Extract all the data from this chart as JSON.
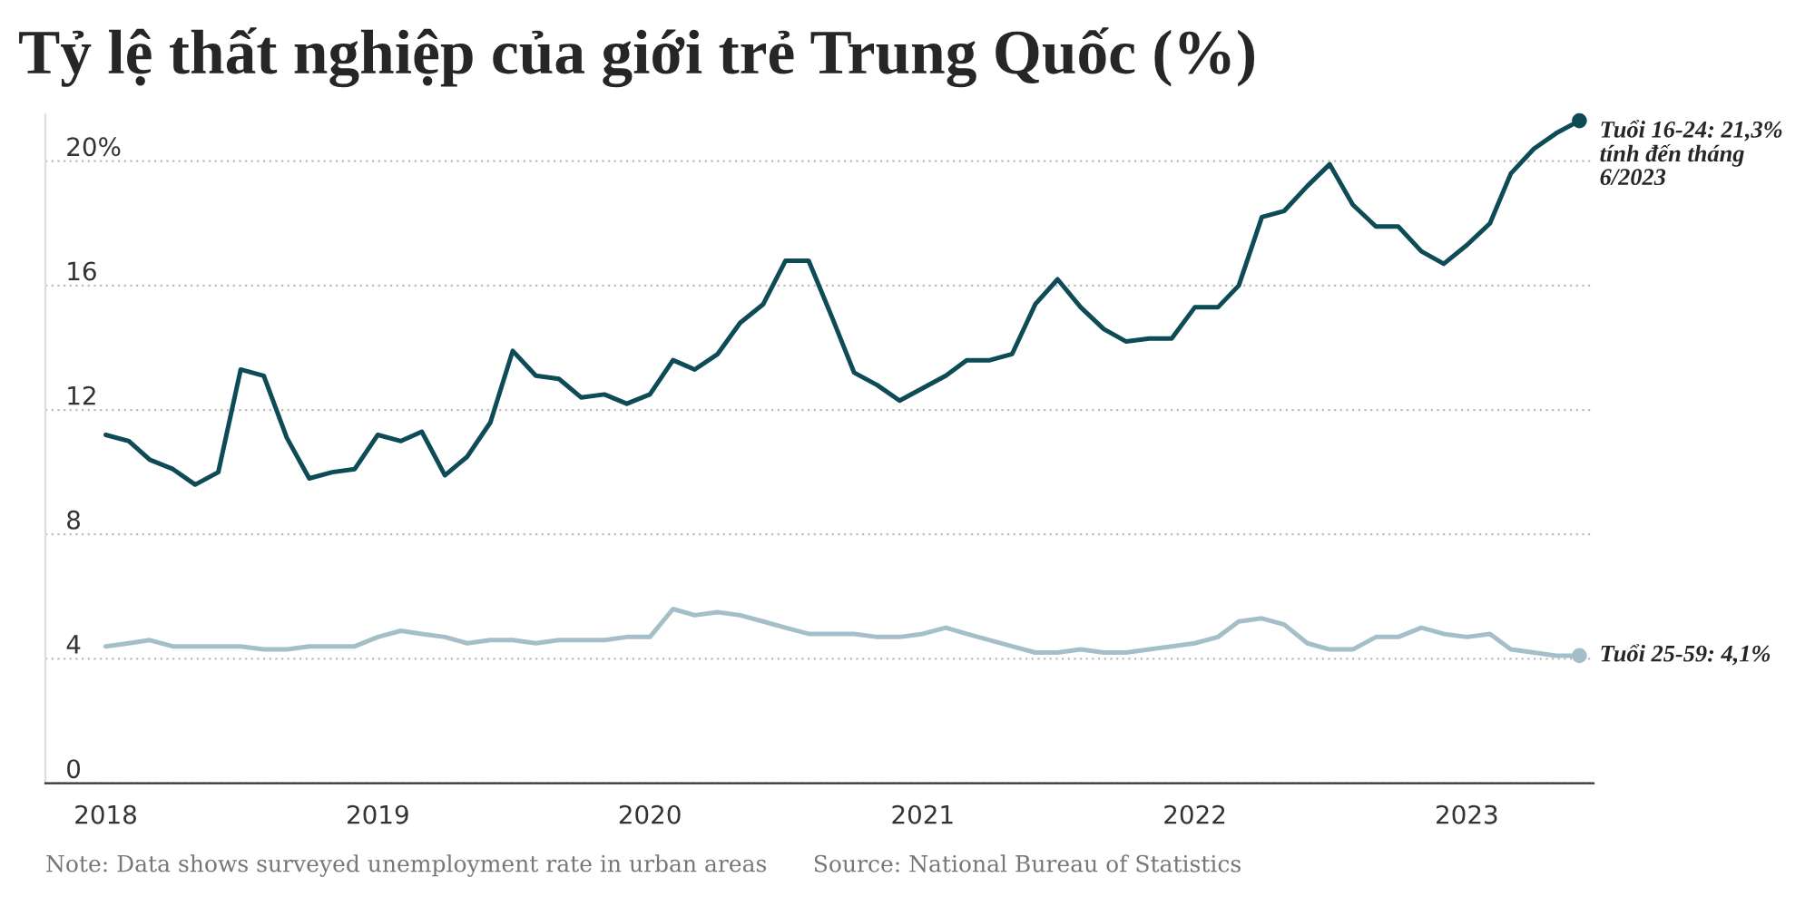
{
  "chart_data": {
    "type": "line",
    "title": "Tỷ lệ thất nghiệp của giới trẻ Trung Quốc (%)",
    "x": [
      "2018-01",
      "2018-02",
      "2018-03",
      "2018-04",
      "2018-05",
      "2018-06",
      "2018-07",
      "2018-08",
      "2018-09",
      "2018-10",
      "2018-11",
      "2018-12",
      "2019-01",
      "2019-02",
      "2019-03",
      "2019-04",
      "2019-05",
      "2019-06",
      "2019-07",
      "2019-08",
      "2019-09",
      "2019-10",
      "2019-11",
      "2019-12",
      "2020-01",
      "2020-02",
      "2020-03",
      "2020-04",
      "2020-05",
      "2020-06",
      "2020-07",
      "2020-08",
      "2020-09",
      "2020-10",
      "2020-11",
      "2020-12",
      "2021-01",
      "2021-02",
      "2021-03",
      "2021-04",
      "2021-05",
      "2021-06",
      "2021-07",
      "2021-08",
      "2021-09",
      "2021-10",
      "2021-11",
      "2021-12",
      "2022-01",
      "2022-02",
      "2022-03",
      "2022-04",
      "2022-05",
      "2022-06",
      "2022-07",
      "2022-08",
      "2022-09",
      "2022-10",
      "2022-11",
      "2022-12",
      "2023-01",
      "2023-02",
      "2023-03",
      "2023-04",
      "2023-05",
      "2023-06"
    ],
    "series": [
      {
        "color": "#0d4b57",
        "values": [
          11.2,
          11.0,
          10.4,
          10.1,
          9.6,
          10.0,
          13.3,
          13.1,
          11.1,
          9.8,
          10.0,
          10.1,
          11.2,
          11.0,
          11.3,
          9.9,
          10.5,
          11.6,
          13.9,
          13.1,
          13.0,
          12.4,
          12.5,
          12.2,
          12.5,
          13.6,
          13.3,
          13.8,
          14.8,
          15.4,
          16.8,
          16.8,
          15.0,
          13.2,
          12.8,
          12.3,
          12.7,
          13.1,
          13.6,
          13.6,
          13.8,
          15.4,
          16.2,
          15.3,
          14.6,
          14.2,
          14.3,
          14.3,
          15.3,
          15.3,
          16.0,
          18.2,
          18.4,
          19.2,
          19.9,
          18.6,
          17.9,
          17.9,
          17.1,
          16.7,
          17.3,
          18.0,
          19.6,
          20.4,
          20.9,
          21.3
        ]
      },
      {
        "color": "#a5bfc9",
        "values": [
          4.4,
          4.5,
          4.6,
          4.4,
          4.4,
          4.4,
          4.4,
          4.3,
          4.3,
          4.4,
          4.4,
          4.4,
          4.7,
          4.9,
          4.8,
          4.7,
          4.5,
          4.6,
          4.6,
          4.5,
          4.6,
          4.6,
          4.6,
          4.7,
          4.7,
          5.6,
          5.4,
          5.5,
          5.4,
          5.2,
          5.0,
          4.8,
          4.8,
          4.8,
          4.7,
          4.7,
          4.8,
          5.0,
          4.8,
          4.6,
          4.4,
          4.2,
          4.2,
          4.3,
          4.2,
          4.2,
          4.3,
          4.4,
          4.5,
          4.7,
          5.2,
          5.3,
          5.1,
          4.5,
          4.3,
          4.3,
          4.7,
          4.7,
          5.0,
          4.8,
          4.7,
          4.8,
          4.3,
          4.2,
          4.1,
          4.1
        ]
      }
    ],
    "xlim": [
      "2017-10-12",
      "2023-06-20"
    ],
    "xticks": [
      "2018",
      "2019",
      "2020",
      "2021",
      "2022",
      "2023"
    ],
    "ylim": [
      0,
      21.5
    ],
    "yticks": [
      0,
      4,
      8,
      12,
      16,
      {
        "value": 20,
        "label": "20%"
      }
    ],
    "grid": "y",
    "marker": "none",
    "line_style": "solid",
    "legend": false,
    "annotations": [
      {
        "text": "Tuổi 16-24: 21,3%\ntính đến tháng\n6/2023",
        "x": "2023-06",
        "y": 21.3
      },
      {
        "text": "Tuổi 25-59: 4,1%",
        "x": "2023-06",
        "y": 4.1
      },
      "Note: Data shows surveyed unemployment rate in urban areas",
      "Source: National Bureau of Statistics"
    ]
  }
}
